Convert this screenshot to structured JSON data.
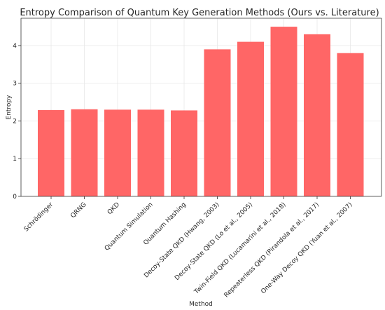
{
  "chart_data": {
    "type": "bar",
    "title": "Entropy Comparison of Quantum Key Generation Methods (Ours vs. Literature)",
    "xlabel": "Method",
    "ylabel": "Entropy",
    "categories": [
      "Schrödinger",
      "QRNG",
      "QKD",
      "Quantum Simulation",
      "Quantum Hashing",
      "Decoy-State QKD (Hwang, 2003)",
      "Decoy-State QKD (Lo et al., 2005)",
      "Twin-Field QKD (Lucamarini et al., 2018)",
      "Repeaterless QKD (Pirandola et al., 2017)",
      "One-Way Decoy QKD (Yuan et al., 2007)"
    ],
    "values": [
      2.29,
      2.31,
      2.3,
      2.3,
      2.28,
      3.9,
      4.1,
      4.5,
      4.3,
      3.8
    ],
    "ylim": [
      0,
      4.725
    ],
    "yticks": [
      0,
      1,
      2,
      3,
      4
    ],
    "grid": true,
    "bar_color": "#ff6666"
  }
}
